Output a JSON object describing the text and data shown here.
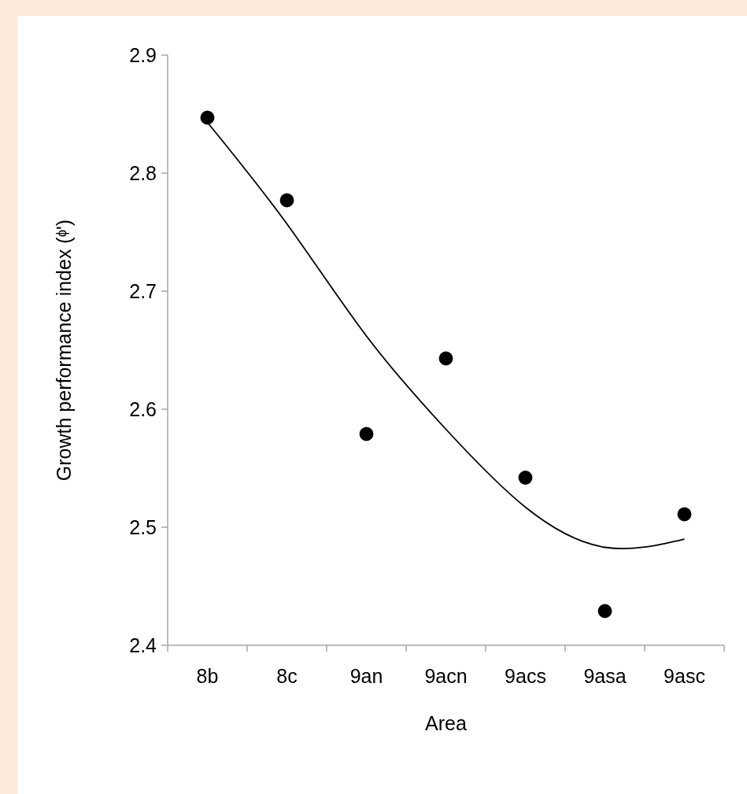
{
  "chart_data": {
    "type": "scatter",
    "xlabel": "Area",
    "ylabel": "Growth performance index (ᶲ')",
    "categories": [
      "8b",
      "8c",
      "9an",
      "9acn",
      "9acs",
      "9asa",
      "9asc"
    ],
    "ylim": [
      2.4,
      2.9
    ],
    "yticks": [
      2.4,
      2.5,
      2.6,
      2.7,
      2.8,
      2.9
    ],
    "grid": false,
    "series": [
      {
        "color": "#000000",
        "marker": "circle",
        "values": [
          2.847,
          2.777,
          2.579,
          2.643,
          2.542,
          2.429,
          2.511
        ]
      },
      {
        "type": "line",
        "color": "#000000",
        "marker": "none",
        "values": [
          2.843,
          2.757,
          2.662,
          2.583,
          2.517,
          2.483,
          2.49
        ]
      }
    ]
  }
}
